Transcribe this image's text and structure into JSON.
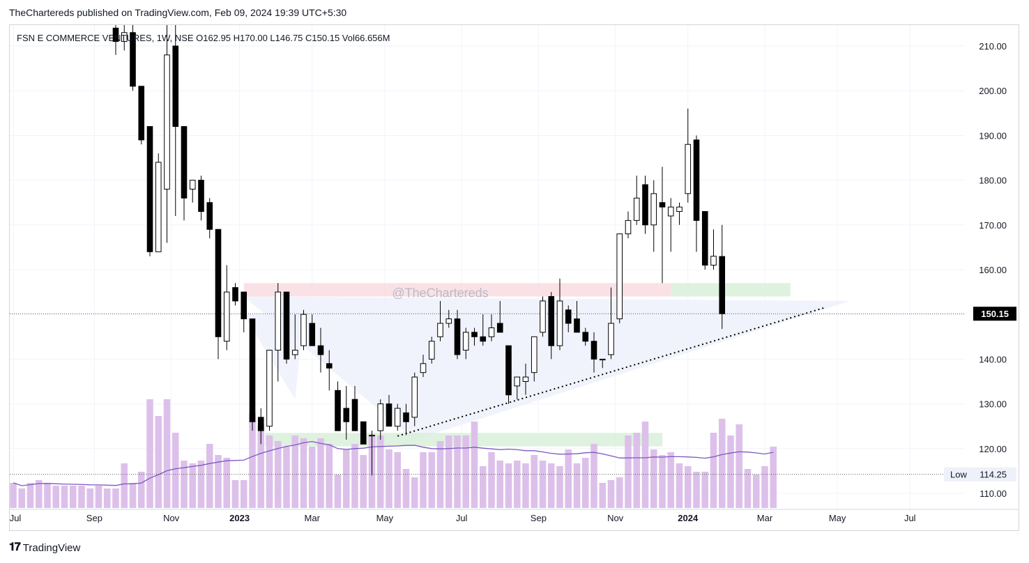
{
  "header": {
    "publisher_line": "TheChartereds published on TradingView.com, Feb 09, 2024 19:39 UTC+5:30",
    "symbol_line": "FSN E COMMERCE VENTURES, 1W, NSE",
    "open": "O162.95",
    "high": "H170.00",
    "low": "L146.75",
    "close": "C150.15",
    "volume": "Vol66.656M"
  },
  "watermark": "@TheChartereds",
  "footer": {
    "logo": "𝟏𝟕",
    "brand": "TradingView"
  },
  "price_axis": {
    "ticks": [
      "210.00",
      "200.00",
      "190.00",
      "180.00",
      "170.00",
      "160.00",
      "150.00",
      "140.00",
      "130.00",
      "120.00",
      "110.00"
    ],
    "tick_values": [
      210,
      200,
      190,
      180,
      170,
      160,
      150,
      140,
      130,
      120,
      110
    ],
    "last_price_label": "150.15",
    "last_price_value": 150.15,
    "low_label": "Low",
    "low_value_label": "114.25",
    "low_value": 114.25
  },
  "time_axis": {
    "labels": [
      {
        "text": "Jul",
        "bar": 0,
        "bold": false
      },
      {
        "text": "Sep",
        "bar": 9.5,
        "bold": false
      },
      {
        "text": "Nov",
        "bar": 18.5,
        "bold": false
      },
      {
        "text": "2023",
        "bar": 26.5,
        "bold": true
      },
      {
        "text": "Mar",
        "bar": 35,
        "bold": false
      },
      {
        "text": "May",
        "bar": 43.5,
        "bold": false
      },
      {
        "text": "Jul",
        "bar": 52.5,
        "bold": false
      },
      {
        "text": "Sep",
        "bar": 61.5,
        "bold": false
      },
      {
        "text": "Nov",
        "bar": 70.5,
        "bold": false
      },
      {
        "text": "2024",
        "bar": 79,
        "bold": true
      },
      {
        "text": "Mar",
        "bar": 88,
        "bold": false
      },
      {
        "text": "May",
        "bar": 96.5,
        "bold": false
      },
      {
        "text": "Jul",
        "bar": 105,
        "bold": false
      }
    ]
  },
  "colors": {
    "up_body": "#ffffff",
    "down_body": "#000000",
    "candle_outline": "#000000",
    "volume": "#dcc0ea",
    "volume_ma": "#7e57c2",
    "supply_zone": "#f8d7dc",
    "demand_zone": "#d9eed9",
    "triangle": "#eef0fb",
    "grid": "#f0f3fa",
    "text": "#131722"
  },
  "chart_data": {
    "type": "candlestick",
    "instrument": "FSN E COMMERCE VENTURES",
    "timeframe": "1W",
    "exchange": "NSE",
    "y_range": [
      107,
      215
    ],
    "candles": [
      {
        "bar": 12,
        "o": 214,
        "h": 216,
        "l": 208,
        "c": 211
      },
      {
        "bar": 13,
        "o": 211,
        "h": 215,
        "l": 209,
        "c": 213
      },
      {
        "bar": 14,
        "o": 213,
        "h": 216,
        "l": 200,
        "c": 201
      },
      {
        "bar": 15,
        "o": 201,
        "h": 201,
        "l": 188,
        "c": 189
      },
      {
        "bar": 16,
        "o": 192,
        "h": 192,
        "l": 163,
        "c": 164
      },
      {
        "bar": 17,
        "o": 164,
        "h": 186,
        "l": 164,
        "c": 184
      },
      {
        "bar": 18,
        "o": 178,
        "h": 216,
        "l": 166,
        "c": 208
      },
      {
        "bar": 19,
        "o": 210,
        "h": 216,
        "l": 172,
        "c": 192
      },
      {
        "bar": 20,
        "o": 192,
        "h": 192,
        "l": 171,
        "c": 176
      },
      {
        "bar": 21,
        "o": 178,
        "h": 180,
        "l": 175,
        "c": 180
      },
      {
        "bar": 22,
        "o": 180,
        "h": 181,
        "l": 171,
        "c": 173
      },
      {
        "bar": 23,
        "o": 175,
        "h": 176,
        "l": 167,
        "c": 169
      },
      {
        "bar": 24,
        "o": 169,
        "h": 169,
        "l": 140,
        "c": 145
      },
      {
        "bar": 25,
        "o": 144,
        "h": 161,
        "l": 142,
        "c": 155
      },
      {
        "bar": 26,
        "o": 156,
        "h": 157,
        "l": 152,
        "c": 153
      },
      {
        "bar": 27,
        "o": 155,
        "h": 155,
        "l": 146,
        "c": 149
      },
      {
        "bar": 28,
        "o": 149,
        "h": 149,
        "l": 124,
        "c": 126
      },
      {
        "bar": 29,
        "o": 127,
        "h": 129,
        "l": 121,
        "c": 124
      },
      {
        "bar": 30,
        "o": 125,
        "h": 142,
        "l": 124,
        "c": 142
      },
      {
        "bar": 31,
        "o": 142,
        "h": 157,
        "l": 135,
        "c": 155
      },
      {
        "bar": 32,
        "o": 155,
        "h": 155,
        "l": 139,
        "c": 140
      },
      {
        "bar": 33,
        "o": 141,
        "h": 150,
        "l": 140,
        "c": 142
      },
      {
        "bar": 34,
        "o": 143,
        "h": 151,
        "l": 142,
        "c": 150
      },
      {
        "bar": 35,
        "o": 148,
        "h": 150,
        "l": 143,
        "c": 143
      },
      {
        "bar": 36,
        "o": 143,
        "h": 147,
        "l": 137,
        "c": 141
      },
      {
        "bar": 37,
        "o": 139,
        "h": 142,
        "l": 133,
        "c": 138
      },
      {
        "bar": 38,
        "o": 133,
        "h": 135,
        "l": 124,
        "c": 124
      },
      {
        "bar": 39,
        "o": 129,
        "h": 134,
        "l": 122,
        "c": 126
      },
      {
        "bar": 40,
        "o": 131,
        "h": 134,
        "l": 124,
        "c": 124
      },
      {
        "bar": 41,
        "o": 126,
        "h": 126,
        "l": 121,
        "c": 121
      },
      {
        "bar": 42,
        "o": 123,
        "h": 124,
        "l": 114,
        "c": 123
      },
      {
        "bar": 43,
        "o": 124,
        "h": 131,
        "l": 122,
        "c": 130
      },
      {
        "bar": 44,
        "o": 130,
        "h": 132,
        "l": 125,
        "c": 125
      },
      {
        "bar": 45,
        "o": 125,
        "h": 130,
        "l": 124,
        "c": 129
      },
      {
        "bar": 46,
        "o": 128,
        "h": 130,
        "l": 123,
        "c": 126
      },
      {
        "bar": 47,
        "o": 127,
        "h": 137,
        "l": 125,
        "c": 136
      },
      {
        "bar": 48,
        "o": 137,
        "h": 141,
        "l": 136,
        "c": 139
      },
      {
        "bar": 49,
        "o": 140,
        "h": 145,
        "l": 139,
        "c": 144
      },
      {
        "bar": 50,
        "o": 145,
        "h": 153,
        "l": 144,
        "c": 148
      },
      {
        "bar": 51,
        "o": 148,
        "h": 151,
        "l": 147,
        "c": 149
      },
      {
        "bar": 52,
        "o": 149,
        "h": 151,
        "l": 140,
        "c": 141
      },
      {
        "bar": 53,
        "o": 142,
        "h": 147,
        "l": 140,
        "c": 146
      },
      {
        "bar": 54,
        "o": 146,
        "h": 147,
        "l": 143,
        "c": 145
      },
      {
        "bar": 55,
        "o": 145,
        "h": 150,
        "l": 143,
        "c": 144
      },
      {
        "bar": 56,
        "o": 145,
        "h": 150,
        "l": 144,
        "c": 147
      },
      {
        "bar": 57,
        "o": 148,
        "h": 153,
        "l": 146,
        "c": 146
      },
      {
        "bar": 58,
        "o": 143,
        "h": 143,
        "l": 130,
        "c": 132
      },
      {
        "bar": 59,
        "o": 134,
        "h": 136,
        "l": 131,
        "c": 136
      },
      {
        "bar": 60,
        "o": 135,
        "h": 139,
        "l": 132,
        "c": 136
      },
      {
        "bar": 61,
        "o": 137,
        "h": 145,
        "l": 135,
        "c": 145
      },
      {
        "bar": 62,
        "o": 146,
        "h": 154,
        "l": 145,
        "c": 153
      },
      {
        "bar": 63,
        "o": 154,
        "h": 155,
        "l": 140,
        "c": 143
      },
      {
        "bar": 64,
        "o": 143,
        "h": 158,
        "l": 142,
        "c": 153
      },
      {
        "bar": 65,
        "o": 151,
        "h": 152,
        "l": 146,
        "c": 148
      },
      {
        "bar": 66,
        "o": 149,
        "h": 153,
        "l": 146,
        "c": 146
      },
      {
        "bar": 67,
        "o": 146,
        "h": 147,
        "l": 143,
        "c": 144
      },
      {
        "bar": 68,
        "o": 144,
        "h": 146,
        "l": 137,
        "c": 140
      },
      {
        "bar": 69,
        "o": 140,
        "h": 140,
        "l": 138,
        "c": 140
      },
      {
        "bar": 70,
        "o": 141,
        "h": 156,
        "l": 140,
        "c": 148
      },
      {
        "bar": 71,
        "o": 149,
        "h": 168,
        "l": 148,
        "c": 168
      },
      {
        "bar": 72,
        "o": 168,
        "h": 173,
        "l": 167,
        "c": 171
      },
      {
        "bar": 73,
        "o": 171,
        "h": 181,
        "l": 170,
        "c": 176
      },
      {
        "bar": 74,
        "o": 179,
        "h": 181,
        "l": 168,
        "c": 170
      },
      {
        "bar": 75,
        "o": 170,
        "h": 180,
        "l": 164,
        "c": 177
      },
      {
        "bar": 76,
        "o": 175,
        "h": 183,
        "l": 157,
        "c": 174
      },
      {
        "bar": 77,
        "o": 172,
        "h": 176,
        "l": 164,
        "c": 174
      },
      {
        "bar": 78,
        "o": 173,
        "h": 175,
        "l": 170,
        "c": 174
      },
      {
        "bar": 79,
        "o": 177,
        "h": 196,
        "l": 175,
        "c": 188
      },
      {
        "bar": 80,
        "o": 189,
        "h": 190,
        "l": 164,
        "c": 171
      },
      {
        "bar": 81,
        "o": 173,
        "h": 173,
        "l": 160,
        "c": 161
      },
      {
        "bar": 82,
        "o": 161,
        "h": 169,
        "l": 160,
        "c": 163
      },
      {
        "bar": 83,
        "o": 162.95,
        "h": 170,
        "l": 146.75,
        "c": 150.15
      }
    ],
    "volume": [
      9,
      7,
      9,
      10,
      9,
      8,
      8,
      8,
      8,
      7,
      8,
      7,
      7,
      16,
      9,
      13,
      39,
      33,
      39,
      27,
      17,
      16,
      17,
      23,
      19,
      18,
      10,
      10,
      34,
      30,
      26,
      24,
      22,
      26,
      25,
      22,
      25,
      23,
      12,
      21,
      23,
      19,
      26,
      26,
      21,
      20,
      14,
      11,
      20,
      20,
      24,
      26,
      26,
      26,
      31,
      15,
      20,
      17,
      16,
      17,
      16,
      19,
      17,
      16,
      15,
      21,
      16,
      18,
      23,
      9,
      10,
      11,
      26,
      27,
      31,
      21,
      19,
      20,
      16,
      15,
      13,
      13,
      27,
      32,
      26,
      30,
      14,
      12,
      15,
      22
    ]
  }
}
